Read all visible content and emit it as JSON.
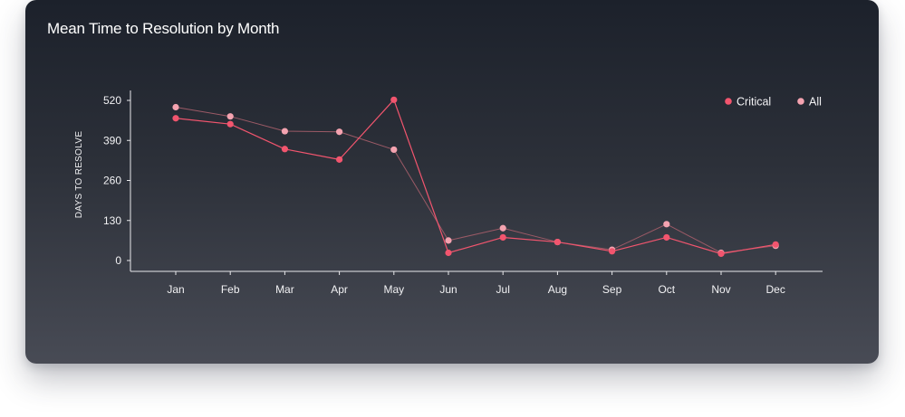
{
  "card": {
    "title": "Mean Time to Resolution by Month"
  },
  "colors": {
    "critical": "#f2556e",
    "all": "#f4a3b0",
    "all_line": "#9b5a66",
    "axis": "#e9e9ec",
    "text": "#f2f2f4"
  },
  "chart_data": {
    "type": "line",
    "title": "Mean Time to Resolution by Month",
    "xlabel": "",
    "ylabel": "DAYS TO RESOLVE",
    "categories": [
      "Jan",
      "Feb",
      "Mar",
      "Apr",
      "May",
      "Jun",
      "Jul",
      "Aug",
      "Sep",
      "Oct",
      "Nov",
      "Dec"
    ],
    "yticks": [
      0,
      130,
      260,
      390,
      520
    ],
    "ylim": [
      0,
      520
    ],
    "grid": false,
    "legend_position": "top-right",
    "series": [
      {
        "name": "Critical",
        "color": "#f2556e",
        "values": [
          462,
          443,
          362,
          328,
          522,
          25,
          75,
          60,
          30,
          75,
          22,
          52
        ]
      },
      {
        "name": "All",
        "color": "#f4a3b0",
        "values": [
          498,
          468,
          420,
          418,
          360,
          65,
          105,
          60,
          35,
          118,
          25,
          48
        ]
      }
    ]
  }
}
